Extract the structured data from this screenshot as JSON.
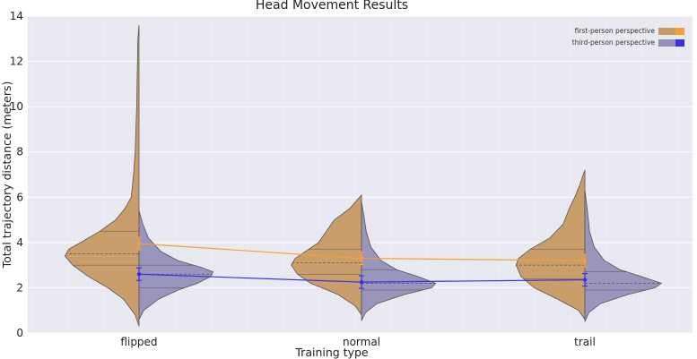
{
  "chart_data": {
    "type": "violin",
    "title": "Head Movement Results",
    "xlabel": "Training type",
    "ylabel": "Total trajectory distance (meters)",
    "ylim": [
      0,
      14
    ],
    "yticks": [
      0,
      2,
      4,
      6,
      8,
      10,
      12,
      14
    ],
    "categories": [
      "flipped",
      "normal",
      "trail"
    ],
    "grid": true,
    "legend_position": "top-right",
    "series": [
      {
        "name": "first-person perspective",
        "side": "left",
        "violin_color": "#c89a62",
        "line_color": "#f5a030",
        "means": [
          3.95,
          3.3,
          3.2
        ],
        "violins": [
          {
            "min": 0.3,
            "max": 13.6,
            "quartiles": [
              3.0,
              3.5,
              4.5
            ],
            "profile": [
              [
                0.3,
                0.0
              ],
              [
                0.8,
                0.05
              ],
              [
                1.5,
                0.2
              ],
              [
                2.0,
                0.4
              ],
              [
                2.5,
                0.65
              ],
              [
                3.0,
                0.85
              ],
              [
                3.4,
                0.95
              ],
              [
                3.7,
                0.9
              ],
              [
                4.0,
                0.75
              ],
              [
                4.5,
                0.5
              ],
              [
                5.0,
                0.3
              ],
              [
                5.5,
                0.18
              ],
              [
                6.0,
                0.1
              ],
              [
                7.0,
                0.07
              ],
              [
                8.0,
                0.05
              ],
              [
                9.0,
                0.04
              ],
              [
                10.0,
                0.03
              ],
              [
                11.0,
                0.025
              ],
              [
                12.0,
                0.02
              ],
              [
                13.0,
                0.015
              ],
              [
                13.6,
                0.0
              ]
            ]
          },
          {
            "min": 0.8,
            "max": 6.1,
            "quartiles": [
              2.6,
              3.1,
              3.7
            ],
            "profile": [
              [
                0.8,
                0.0
              ],
              [
                1.2,
                0.08
              ],
              [
                1.7,
                0.3
              ],
              [
                2.2,
                0.65
              ],
              [
                2.6,
                0.82
              ],
              [
                3.0,
                0.9
              ],
              [
                3.3,
                0.85
              ],
              [
                3.6,
                0.72
              ],
              [
                4.0,
                0.55
              ],
              [
                4.5,
                0.45
              ],
              [
                5.0,
                0.35
              ],
              [
                5.5,
                0.15
              ],
              [
                6.1,
                0.0
              ]
            ]
          },
          {
            "min": 0.6,
            "max": 7.2,
            "quartiles": [
              2.4,
              3.0,
              3.7
            ],
            "profile": [
              [
                0.6,
                0.0
              ],
              [
                1.0,
                0.08
              ],
              [
                1.5,
                0.35
              ],
              [
                2.0,
                0.65
              ],
              [
                2.5,
                0.82
              ],
              [
                3.0,
                0.88
              ],
              [
                3.3,
                0.85
              ],
              [
                3.7,
                0.7
              ],
              [
                4.2,
                0.45
              ],
              [
                4.8,
                0.28
              ],
              [
                5.5,
                0.2
              ],
              [
                6.0,
                0.13
              ],
              [
                6.5,
                0.07
              ],
              [
                7.2,
                0.0
              ]
            ]
          }
        ]
      },
      {
        "name": "third-person perspective",
        "side": "right",
        "violin_color": "#9590b8",
        "line_color": "#3a2ee8",
        "means": [
          2.6,
          2.25,
          2.35
        ],
        "violins": [
          {
            "min": 0.6,
            "max": 5.4,
            "quartiles": [
              2.0,
              2.6,
              3.0
            ],
            "profile": [
              [
                0.6,
                0.0
              ],
              [
                1.0,
                0.06
              ],
              [
                1.5,
                0.25
              ],
              [
                1.9,
                0.5
              ],
              [
                2.2,
                0.75
              ],
              [
                2.5,
                0.92
              ],
              [
                2.7,
                0.95
              ],
              [
                2.9,
                0.8
              ],
              [
                3.2,
                0.5
              ],
              [
                3.6,
                0.28
              ],
              [
                4.2,
                0.12
              ],
              [
                4.8,
                0.05
              ],
              [
                5.4,
                0.0
              ]
            ]
          },
          {
            "min": 0.55,
            "max": 5.8,
            "quartiles": [
              1.9,
              2.2,
              2.8
            ],
            "profile": [
              [
                0.55,
                0.0
              ],
              [
                0.9,
                0.05
              ],
              [
                1.3,
                0.2
              ],
              [
                1.7,
                0.55
              ],
              [
                2.0,
                0.9
              ],
              [
                2.2,
                0.95
              ],
              [
                2.5,
                0.72
              ],
              [
                2.8,
                0.45
              ],
              [
                3.2,
                0.25
              ],
              [
                3.8,
                0.12
              ],
              [
                4.5,
                0.06
              ],
              [
                5.2,
                0.03
              ],
              [
                5.8,
                0.0
              ]
            ]
          },
          {
            "min": 0.5,
            "max": 6.3,
            "quartiles": [
              1.9,
              2.2,
              2.7
            ],
            "profile": [
              [
                0.5,
                0.0
              ],
              [
                0.9,
                0.05
              ],
              [
                1.3,
                0.2
              ],
              [
                1.7,
                0.55
              ],
              [
                2.0,
                0.9
              ],
              [
                2.2,
                0.98
              ],
              [
                2.5,
                0.72
              ],
              [
                2.8,
                0.45
              ],
              [
                3.2,
                0.25
              ],
              [
                3.8,
                0.12
              ],
              [
                4.5,
                0.06
              ],
              [
                5.5,
                0.03
              ],
              [
                6.3,
                0.0
              ]
            ]
          }
        ]
      }
    ]
  }
}
